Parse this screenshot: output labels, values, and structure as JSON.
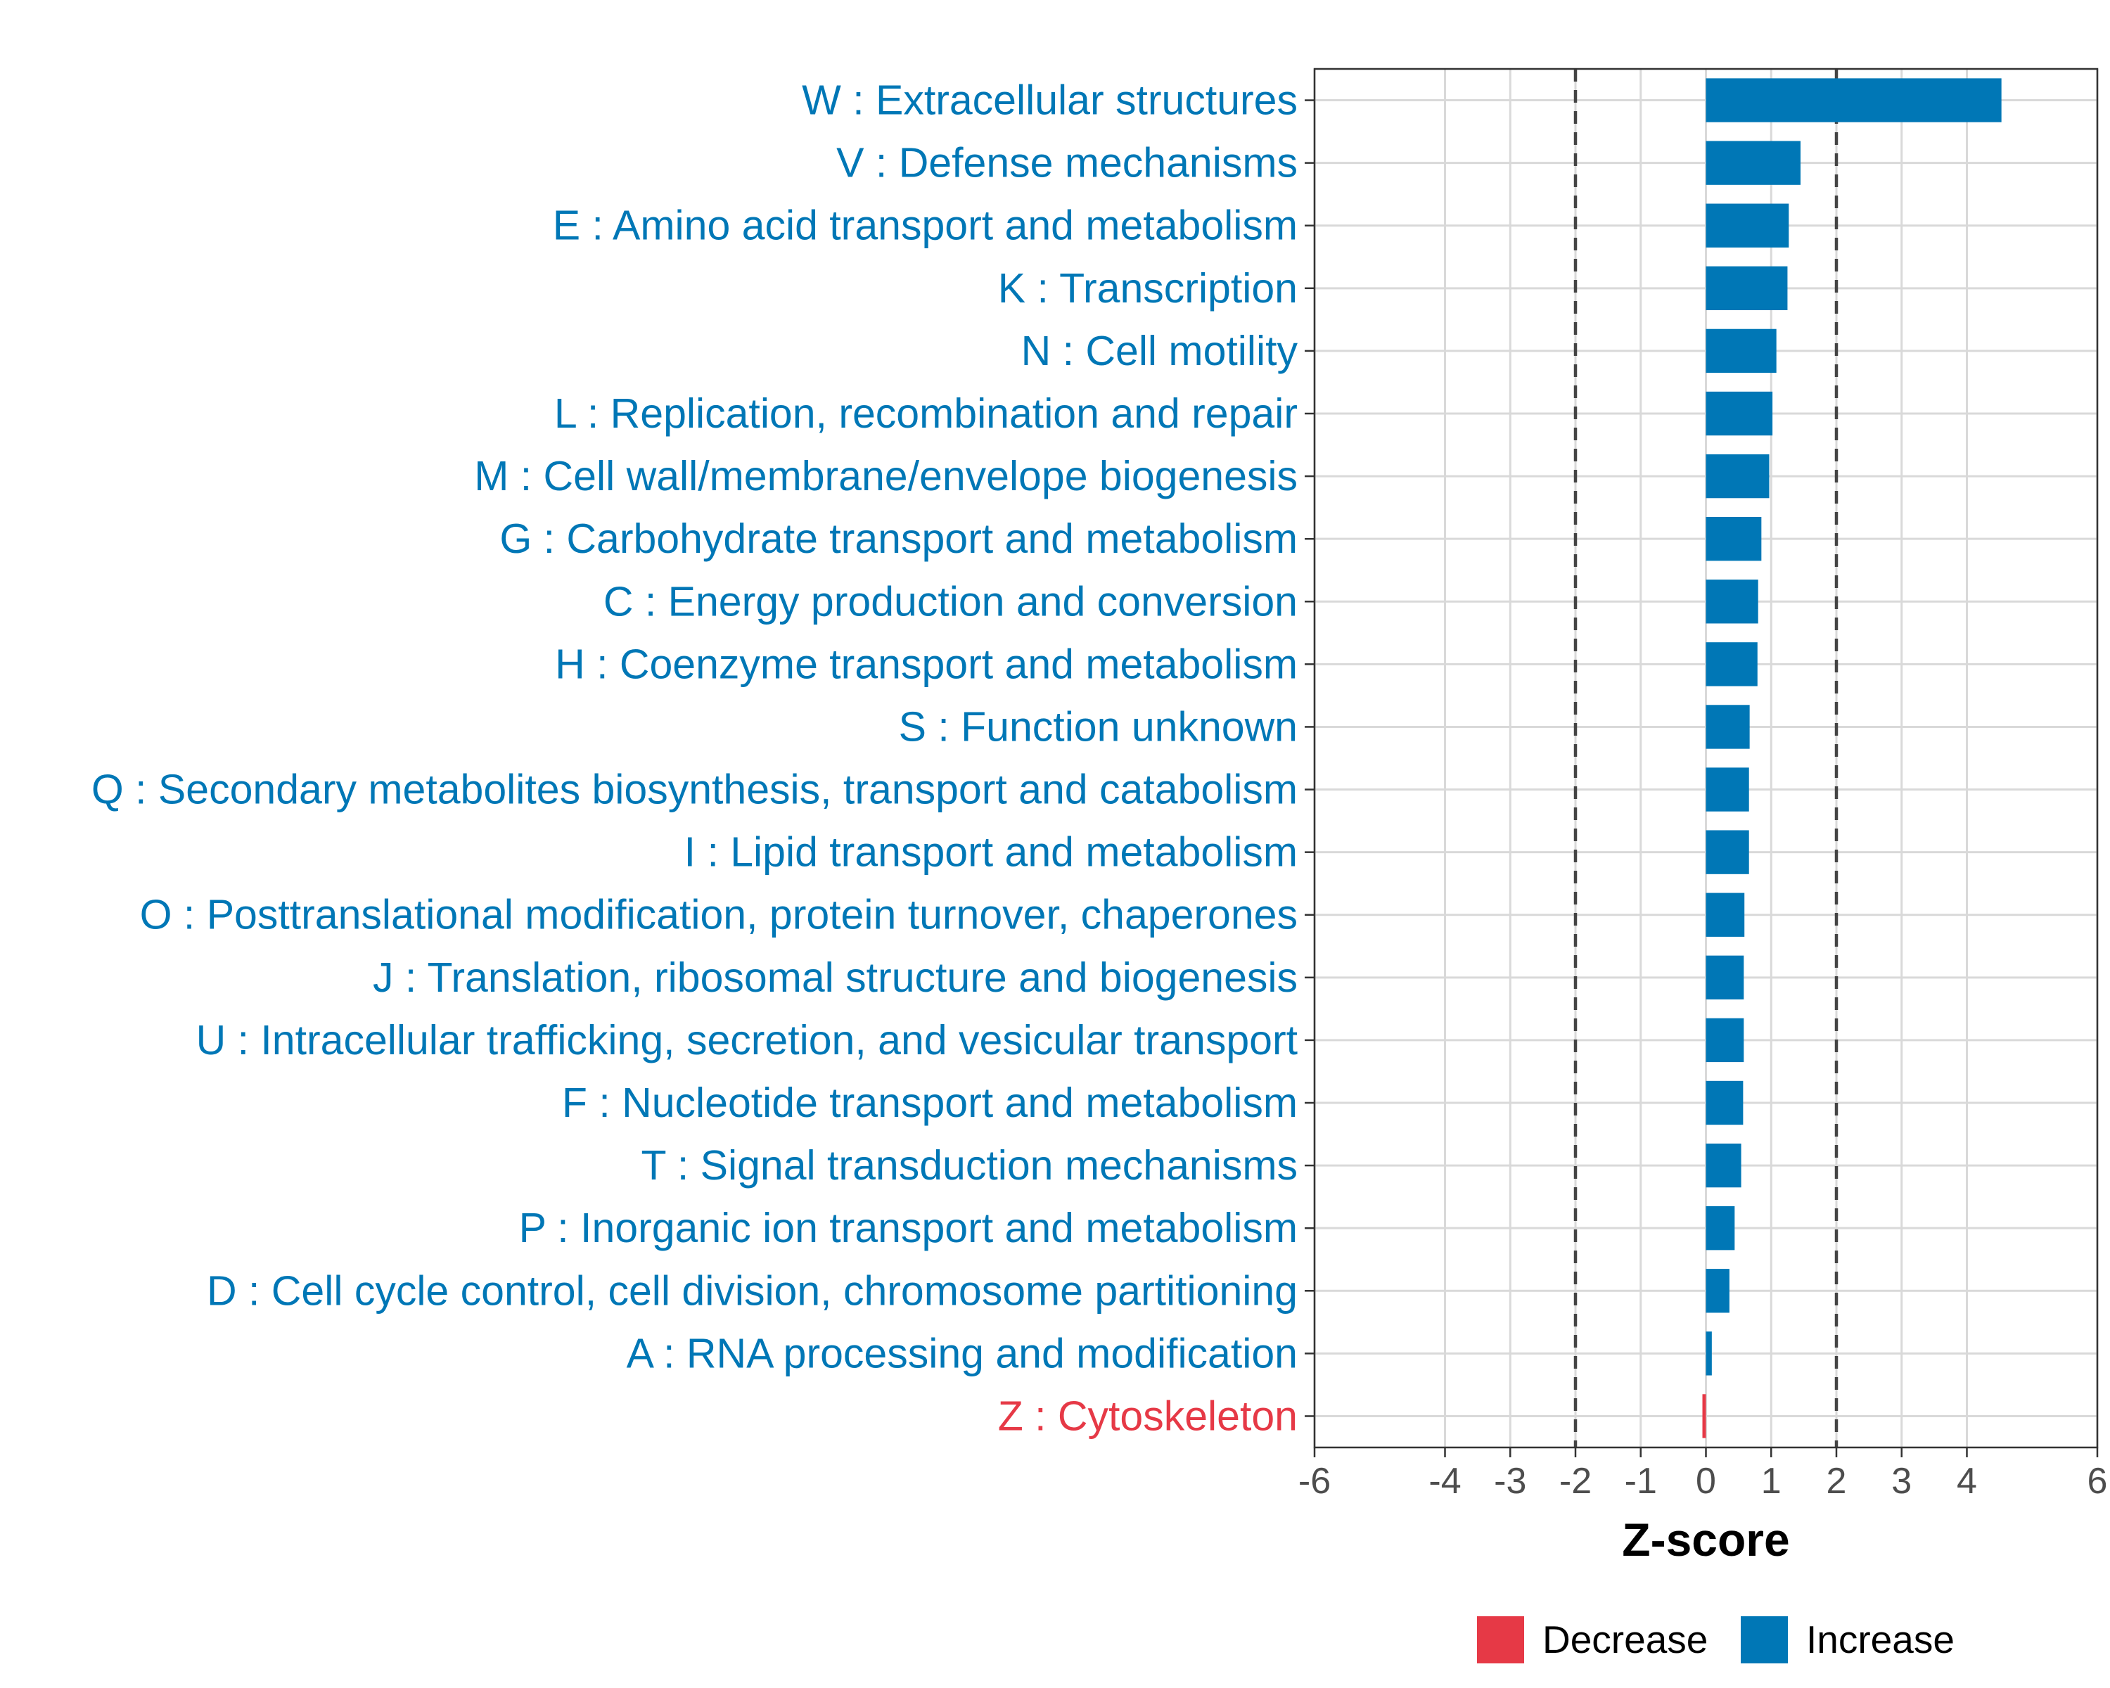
{
  "chart_data": {
    "type": "bar",
    "orientation": "horizontal",
    "title": "",
    "xlabel": "Z-score",
    "ylabel": "",
    "xlim": [
      -6,
      6
    ],
    "x_ticks": [
      -6,
      -4,
      -3,
      -2,
      -1,
      0,
      1,
      2,
      3,
      4,
      6
    ],
    "reference_lines": [
      -2,
      2
    ],
    "grid": true,
    "categories": [
      "W : Extracellular structures",
      "V : Defense mechanisms",
      "E : Amino acid transport and metabolism",
      "K : Transcription",
      "N : Cell motility",
      "L : Replication, recombination and repair",
      "M : Cell wall/membrane/envelope biogenesis",
      "G : Carbohydrate transport and metabolism",
      "C : Energy production and conversion",
      "H : Coenzyme transport and metabolism",
      "S : Function unknown",
      "Q : Secondary metabolites biosynthesis, transport and catabolism",
      "I : Lipid transport and metabolism",
      "O : Posttranslational modification, protein turnover, chaperones",
      "J : Translation, ribosomal structure and biogenesis",
      "U : Intracellular trafficking, secretion, and vesicular transport",
      "F : Nucleotide transport and metabolism",
      "T : Signal transduction mechanisms",
      "P : Inorganic ion transport and metabolism",
      "D : Cell cycle control, cell division, chromosome partitioning",
      "A : RNA processing and modification",
      "Z : Cytoskeleton"
    ],
    "values": [
      4.53,
      1.45,
      1.27,
      1.25,
      1.08,
      1.02,
      0.97,
      0.85,
      0.8,
      0.79,
      0.67,
      0.66,
      0.66,
      0.59,
      0.58,
      0.58,
      0.57,
      0.54,
      0.44,
      0.36,
      0.09,
      -0.04
    ],
    "groups": [
      "Increase",
      "Increase",
      "Increase",
      "Increase",
      "Increase",
      "Increase",
      "Increase",
      "Increase",
      "Increase",
      "Increase",
      "Increase",
      "Increase",
      "Increase",
      "Increase",
      "Increase",
      "Increase",
      "Increase",
      "Increase",
      "Increase",
      "Increase",
      "Increase",
      "Decrease"
    ],
    "legend": {
      "position": "bottom",
      "entries": [
        {
          "label": "Decrease",
          "color": "#e63946"
        },
        {
          "label": "Increase",
          "color": "#0077b6"
        }
      ]
    }
  }
}
